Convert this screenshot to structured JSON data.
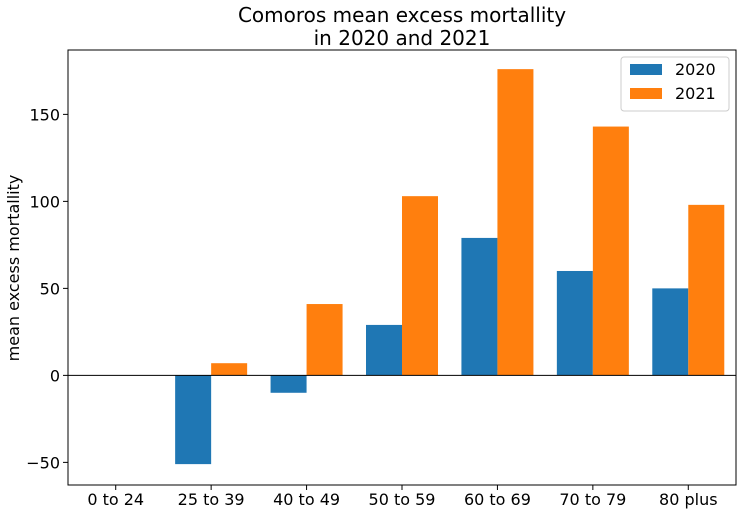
{
  "chart_data": {
    "type": "bar",
    "title": "Comoros mean excess mortallity\nin 2020 and 2021",
    "title_lines": [
      "Comoros mean excess mortallity",
      "in 2020 and 2021"
    ],
    "xlabel": "",
    "ylabel": "mean excess mortallity",
    "categories": [
      "0 to 24",
      "25 to 39",
      "40 to 49",
      "50 to 59",
      "60 to 69",
      "70 to 79",
      "80 plus"
    ],
    "series": [
      {
        "name": "2020",
        "color": "#1f77b4",
        "values": [
          0,
          -51,
          -10,
          29,
          79,
          60,
          50
        ]
      },
      {
        "name": "2021",
        "color": "#ff7f0e",
        "values": [
          0,
          7,
          41,
          103,
          176,
          143,
          98
        ]
      }
    ],
    "yticks": [
      -50,
      0,
      50,
      100,
      150
    ],
    "ytick_labels": [
      "−50",
      "0",
      "50",
      "100",
      "150"
    ],
    "ylim": [
      -63,
      187
    ],
    "zero_line": true,
    "grid": false,
    "legend": "top-right"
  }
}
